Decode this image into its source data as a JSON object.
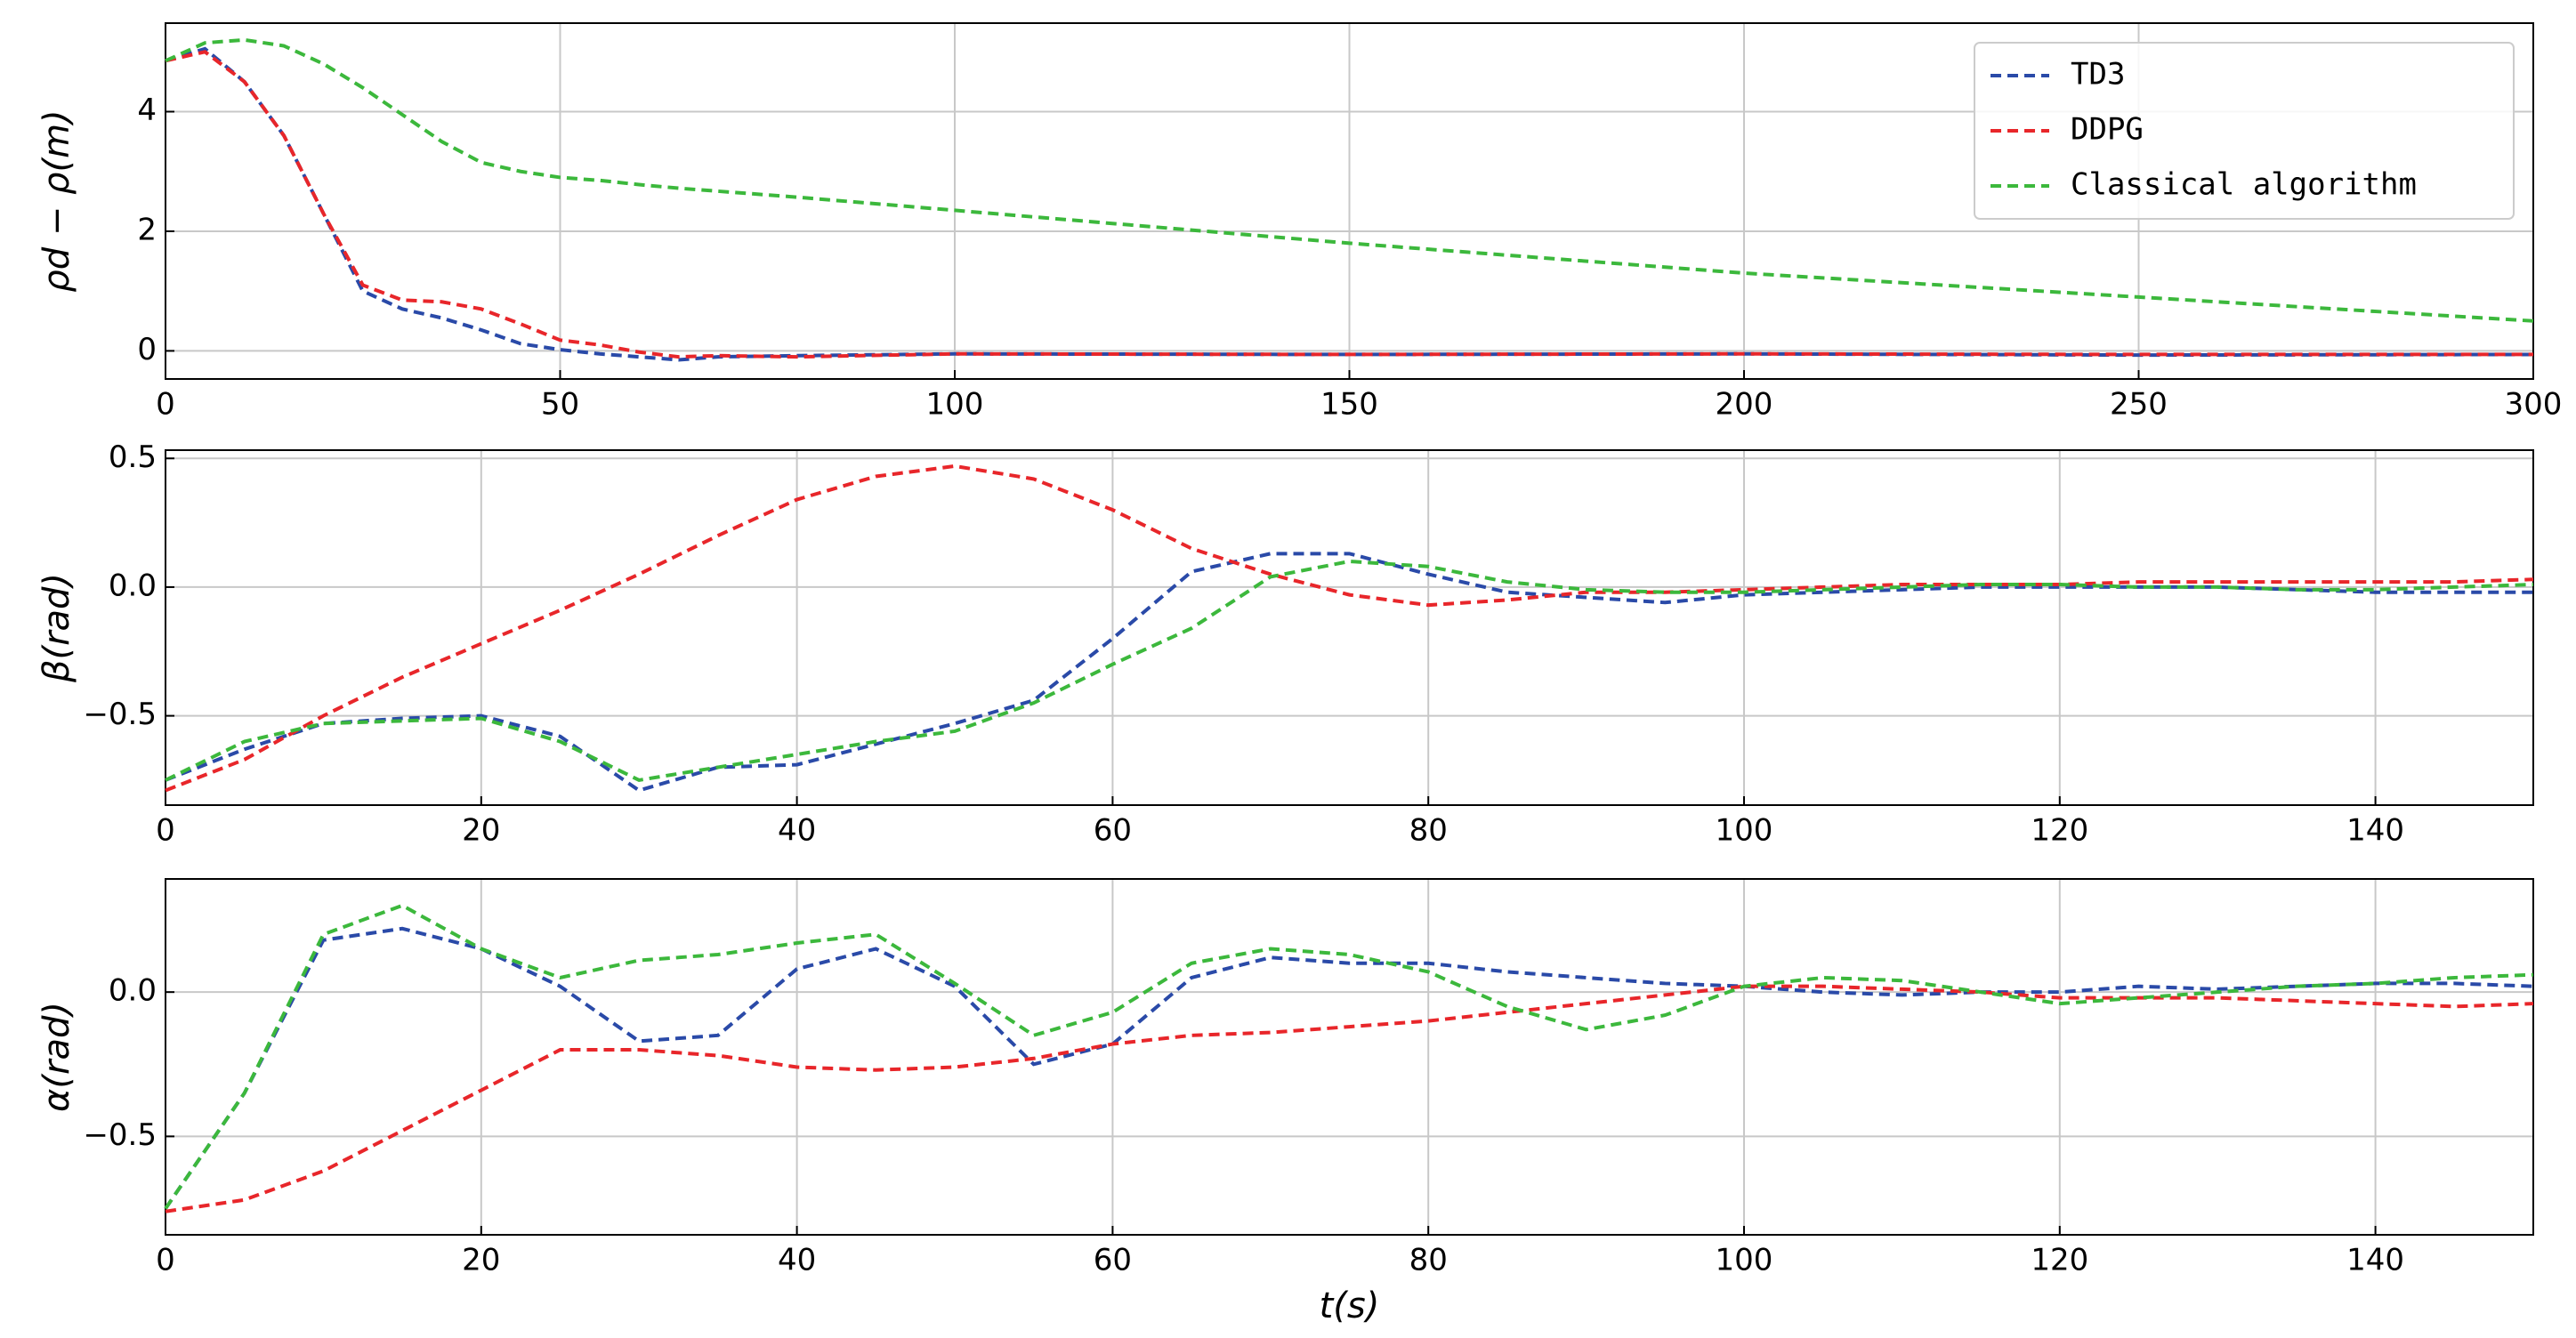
{
  "chart_data": [
    {
      "type": "line",
      "y_label": "ρd − ρ(m)",
      "x": [
        0,
        5,
        10,
        15,
        20,
        25,
        30,
        35,
        40,
        45,
        50,
        55,
        60,
        65,
        70,
        80,
        100,
        150,
        200,
        250,
        300
      ],
      "xlim": [
        0,
        300
      ],
      "xticks": [
        0,
        50,
        100,
        150,
        200,
        250,
        300
      ],
      "ylim": [
        -0.47,
        5.48
      ],
      "yticks": [
        0,
        2,
        4
      ],
      "grid": true,
      "legend": "upper right",
      "series": [
        {
          "name": "TD3",
          "color": "#2a4aa8",
          "values": [
            4.85,
            5.05,
            4.5,
            3.6,
            2.3,
            1.0,
            0.7,
            0.55,
            0.35,
            0.12,
            0.02,
            -0.05,
            -0.1,
            -0.15,
            -0.1,
            -0.08,
            -0.05,
            -0.06,
            -0.05,
            -0.07,
            -0.06
          ]
        },
        {
          "name": "DDPG",
          "color": "#e8262a",
          "values": [
            4.85,
            5.0,
            4.5,
            3.6,
            2.3,
            1.1,
            0.85,
            0.82,
            0.7,
            0.45,
            0.18,
            0.1,
            -0.02,
            -0.1,
            -0.08,
            -0.1,
            -0.05,
            -0.06,
            -0.05,
            -0.06,
            -0.06
          ]
        },
        {
          "name": "Classical algorithm",
          "color": "#3cb83c",
          "values": [
            4.85,
            5.15,
            5.2,
            5.1,
            4.8,
            4.4,
            3.95,
            3.5,
            3.15,
            3.0,
            2.9,
            2.85,
            2.78,
            2.72,
            2.67,
            2.57,
            2.35,
            1.8,
            1.3,
            0.9,
            0.5
          ]
        }
      ]
    },
    {
      "type": "line",
      "y_label": "β(rad)",
      "x": [
        0,
        5,
        10,
        15,
        20,
        25,
        30,
        35,
        40,
        45,
        50,
        55,
        60,
        65,
        70,
        75,
        80,
        85,
        90,
        95,
        100,
        105,
        110,
        115,
        120,
        125,
        130,
        135,
        140,
        145,
        150
      ],
      "xlim": [
        0,
        150
      ],
      "xticks": [
        0,
        20,
        40,
        60,
        80,
        100,
        120,
        140
      ],
      "ylim": [
        -0.847,
        0.532
      ],
      "yticks": [
        {
          "value": -0.5,
          "label": "−0.5"
        },
        {
          "value": 0,
          "label": "0.0"
        },
        0.5
      ],
      "grid": true,
      "series": [
        {
          "name": "TD3",
          "color": "#2a4aa8",
          "values": [
            -0.75,
            -0.63,
            -0.53,
            -0.51,
            -0.5,
            -0.58,
            -0.79,
            -0.7,
            -0.69,
            -0.61,
            -0.53,
            -0.44,
            -0.2,
            0.06,
            0.13,
            0.13,
            0.05,
            -0.02,
            -0.04,
            -0.06,
            -0.03,
            -0.02,
            -0.01,
            0,
            0,
            0,
            0,
            -0.01,
            -0.02,
            -0.02,
            -0.02
          ]
        },
        {
          "name": "DDPG",
          "color": "#e8262a",
          "values": [
            -0.79,
            -0.67,
            -0.5,
            -0.35,
            -0.22,
            -0.09,
            0.05,
            0.2,
            0.34,
            0.43,
            0.47,
            0.42,
            0.3,
            0.15,
            0.05,
            -0.03,
            -0.07,
            -0.05,
            -0.02,
            -0.02,
            -0.01,
            0,
            0.01,
            0.01,
            0.01,
            0.02,
            0.02,
            0.02,
            0.02,
            0.02,
            0.03
          ]
        },
        {
          "name": "Classical algorithm",
          "color": "#3cb83c",
          "values": [
            -0.75,
            -0.6,
            -0.53,
            -0.52,
            -0.51,
            -0.6,
            -0.75,
            -0.7,
            -0.65,
            -0.6,
            -0.56,
            -0.45,
            -0.3,
            -0.16,
            0.04,
            0.1,
            0.08,
            0.02,
            -0.01,
            -0.02,
            -0.02,
            -0.01,
            0,
            0.01,
            0.01,
            0,
            0,
            -0.01,
            -0.01,
            0,
            0.01
          ]
        }
      ]
    },
    {
      "type": "line",
      "y_label": "α(rad)",
      "x_label": "t(s)",
      "x": [
        0,
        5,
        10,
        15,
        20,
        25,
        30,
        35,
        40,
        45,
        50,
        55,
        60,
        65,
        70,
        75,
        80,
        85,
        90,
        95,
        100,
        105,
        110,
        115,
        120,
        125,
        130,
        135,
        140,
        145,
        150
      ],
      "xlim": [
        0,
        150
      ],
      "xticks": [
        0,
        20,
        40,
        60,
        80,
        100,
        120,
        140
      ],
      "ylim": [
        -0.841,
        0.392
      ],
      "yticks": [
        {
          "value": -0.5,
          "label": "−0.5"
        },
        {
          "value": 0,
          "label": "0.0"
        }
      ],
      "grid": true,
      "series": [
        {
          "name": "TD3",
          "color": "#2a4aa8",
          "values": [
            -0.75,
            -0.35,
            0.18,
            0.22,
            0.15,
            0.02,
            -0.17,
            -0.15,
            0.08,
            0.15,
            0.02,
            -0.25,
            -0.18,
            0.05,
            0.12,
            0.1,
            0.1,
            0.07,
            0.05,
            0.03,
            0.02,
            0,
            -0.01,
            0,
            0,
            0.02,
            0.01,
            0.02,
            0.03,
            0.03,
            0.02
          ]
        },
        {
          "name": "DDPG",
          "color": "#e8262a",
          "values": [
            -0.76,
            -0.72,
            -0.62,
            -0.48,
            -0.34,
            -0.2,
            -0.2,
            -0.22,
            -0.26,
            -0.27,
            -0.26,
            -0.23,
            -0.18,
            -0.15,
            -0.14,
            -0.12,
            -0.1,
            -0.07,
            -0.04,
            -0.01,
            0.02,
            0.02,
            0.01,
            0,
            -0.02,
            -0.02,
            -0.02,
            -0.03,
            -0.04,
            -0.05,
            -0.04
          ]
        },
        {
          "name": "Classical algorithm",
          "color": "#3cb83c",
          "values": [
            -0.75,
            -0.35,
            0.2,
            0.3,
            0.15,
            0.05,
            0.11,
            0.13,
            0.17,
            0.2,
            0.03,
            -0.15,
            -0.07,
            0.1,
            0.15,
            0.13,
            0.07,
            -0.05,
            -0.13,
            -0.08,
            0.02,
            0.05,
            0.04,
            0,
            -0.04,
            -0.02,
            0,
            0.02,
            0.03,
            0.05,
            0.06
          ]
        }
      ]
    }
  ]
}
